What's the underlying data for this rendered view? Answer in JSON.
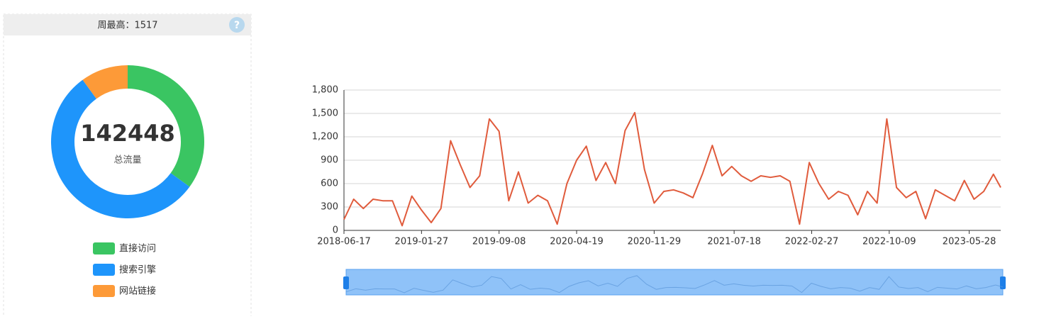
{
  "panel": {
    "header": "周最高：1517",
    "help": "?"
  },
  "chart_data": [
    {
      "type": "pie",
      "donut": true,
      "total": 142448,
      "total_label": "总流量",
      "categories": [
        "直接访问",
        "搜索引擎",
        "网站链接"
      ],
      "values": [
        35,
        55,
        10
      ],
      "colors": [
        "#3ac562",
        "#1e95fb",
        "#fd9a38"
      ]
    },
    {
      "type": "line",
      "color": "#e05b3c",
      "grid": true,
      "x": [
        "2018-06-17",
        "2018-07-15",
        "2018-08-12",
        "2018-09-09",
        "2018-10-07",
        "2018-11-04",
        "2018-12-02",
        "2018-12-30",
        "2019-01-27",
        "2019-02-24",
        "2019-03-24",
        "2019-04-21",
        "2019-05-19",
        "2019-06-16",
        "2019-07-14",
        "2019-08-11",
        "2019-09-08",
        "2019-10-06",
        "2019-11-03",
        "2019-12-01",
        "2019-12-29",
        "2020-01-26",
        "2020-02-23",
        "2020-03-22",
        "2020-04-19",
        "2020-05-17",
        "2020-06-14",
        "2020-07-12",
        "2020-08-09",
        "2020-09-06",
        "2020-10-04",
        "2020-11-01",
        "2020-11-29",
        "2020-12-27",
        "2021-01-24",
        "2021-02-21",
        "2021-03-21",
        "2021-04-18",
        "2021-05-16",
        "2021-06-13",
        "2021-07-11",
        "2021-08-08",
        "2021-09-05",
        "2021-10-03",
        "2021-10-31",
        "2021-11-28",
        "2021-12-26",
        "2022-01-23",
        "2022-02-20",
        "2022-03-20",
        "2022-04-17",
        "2022-05-15",
        "2022-06-12",
        "2022-07-10",
        "2022-08-07",
        "2022-09-04",
        "2022-10-02",
        "2022-10-30",
        "2022-11-27",
        "2022-12-25",
        "2023-01-22",
        "2023-02-19",
        "2023-03-19",
        "2023-04-16",
        "2023-05-14",
        "2023-06-11",
        "2023-07-09",
        "2023-08-06",
        "2023-08-27"
      ],
      "values": [
        140,
        400,
        280,
        400,
        380,
        380,
        60,
        440,
        260,
        100,
        280,
        1150,
        840,
        550,
        700,
        1430,
        1270,
        380,
        750,
        350,
        450,
        380,
        80,
        600,
        900,
        1080,
        640,
        870,
        600,
        1280,
        1510,
        780,
        350,
        500,
        520,
        480,
        420,
        730,
        1090,
        700,
        820,
        700,
        630,
        700,
        680,
        700,
        630,
        80,
        870,
        600,
        400,
        500,
        450,
        200,
        500,
        350,
        1430,
        550,
        420,
        500,
        150,
        520,
        450,
        380,
        640,
        400,
        500,
        720,
        550
      ],
      "xlim": [
        "2018-06-17",
        "2023-08-27"
      ],
      "xticks": [
        "2018-06-17",
        "2019-01-27",
        "2019-09-08",
        "2020-04-19",
        "2020-11-29",
        "2021-07-18",
        "2022-02-27",
        "2022-10-09",
        "2023-05-28"
      ],
      "ylim": [
        0,
        1800
      ],
      "yticks": [
        0,
        300,
        600,
        900,
        {
          "value": 1200,
          "label": "1,200"
        },
        {
          "value": 1500,
          "label": "1,500"
        },
        {
          "value": 1800,
          "label": "1,800"
        }
      ]
    }
  ]
}
